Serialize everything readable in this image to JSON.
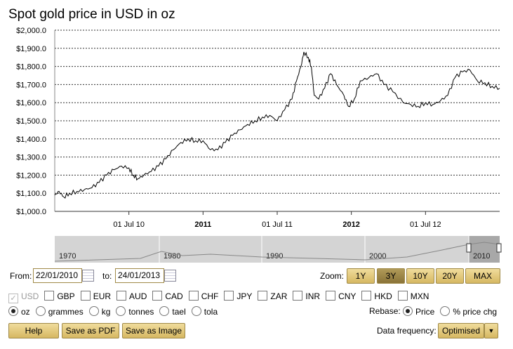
{
  "chart_data": {
    "type": "line",
    "title": "Spot gold price in USD in oz",
    "xlabel": "",
    "ylabel": "",
    "ylim": [
      1000,
      2000
    ],
    "xlim": [
      2010.0,
      2013.0
    ],
    "yticks": [
      "$1,000.0",
      "$1,100.0",
      "$1,200.0",
      "$1,300.0",
      "$1,400.0",
      "$1,500.0",
      "$1,600.0",
      "$1,700.0",
      "$1,800.0",
      "$1,900.0",
      "$2,000.0"
    ],
    "xticks": [
      {
        "t": 2010.5,
        "label": "01 Jul 10",
        "bold": false
      },
      {
        "t": 2011.0,
        "label": "2011",
        "bold": true
      },
      {
        "t": 2011.5,
        "label": "01 Jul 11",
        "bold": false
      },
      {
        "t": 2012.0,
        "label": "2012",
        "bold": true
      },
      {
        "t": 2012.5,
        "label": "01 Jul 12",
        "bold": false
      }
    ],
    "grid": true,
    "series": [
      {
        "name": "USD",
        "x": [
          2010.0,
          2010.03,
          2010.06,
          2010.1,
          2010.15,
          2010.2,
          2010.25,
          2010.3,
          2010.35,
          2010.4,
          2010.45,
          2010.5,
          2010.53,
          2010.56,
          2010.6,
          2010.65,
          2010.7,
          2010.75,
          2010.8,
          2010.85,
          2010.9,
          2010.95,
          2011.0,
          2011.05,
          2011.1,
          2011.15,
          2011.2,
          2011.25,
          2011.3,
          2011.35,
          2011.4,
          2011.45,
          2011.5,
          2011.55,
          2011.6,
          2011.63,
          2011.66,
          2011.68,
          2011.71,
          2011.73,
          2011.75,
          2011.78,
          2011.82,
          2011.86,
          2011.9,
          2011.95,
          2011.98,
          2012.02,
          2012.06,
          2012.12,
          2012.17,
          2012.22,
          2012.28,
          2012.35,
          2012.4,
          2012.45,
          2012.5,
          2012.55,
          2012.6,
          2012.65,
          2012.7,
          2012.75,
          2012.8,
          2012.85,
          2012.9,
          2012.95,
          2013.0
        ],
        "y": [
          1090,
          1110,
          1080,
          1100,
          1110,
          1120,
          1130,
          1160,
          1200,
          1230,
          1250,
          1240,
          1200,
          1180,
          1200,
          1220,
          1250,
          1290,
          1340,
          1380,
          1400,
          1390,
          1390,
          1340,
          1340,
          1380,
          1420,
          1450,
          1480,
          1500,
          1520,
          1530,
          1500,
          1560,
          1620,
          1720,
          1800,
          1880,
          1850,
          1800,
          1640,
          1620,
          1680,
          1760,
          1700,
          1640,
          1580,
          1620,
          1720,
          1740,
          1760,
          1700,
          1660,
          1600,
          1590,
          1580,
          1600,
          1590,
          1610,
          1640,
          1740,
          1770,
          1780,
          1720,
          1710,
          1690,
          1680
        ]
      }
    ]
  },
  "controls": {
    "from_label": "From:",
    "from_value": "22/01/2010",
    "to_label": "to:",
    "to_value": "24/01/2013",
    "zoom_label": "Zoom:",
    "zoom_buttons": [
      "1Y",
      "3Y",
      "10Y",
      "20Y",
      "MAX"
    ],
    "zoom_active": "3Y",
    "currencies": [
      "USD",
      "GBP",
      "EUR",
      "AUD",
      "CAD",
      "CHF",
      "JPY",
      "ZAR",
      "INR",
      "CNY",
      "HKD",
      "MXN"
    ],
    "units": [
      "oz",
      "grammes",
      "kg",
      "tonnes",
      "tael",
      "tola"
    ],
    "rebase_label": "Rebase:",
    "rebase_options": [
      "Price",
      "% price chg"
    ],
    "help": "Help",
    "save_pdf": "Save as PDF",
    "save_image": "Save as Image",
    "freq_label": "Data frequency:",
    "freq_value": "Optimised"
  },
  "navigator": {
    "labels": [
      "1970",
      "1980",
      "1990",
      "2000",
      "2010"
    ]
  }
}
